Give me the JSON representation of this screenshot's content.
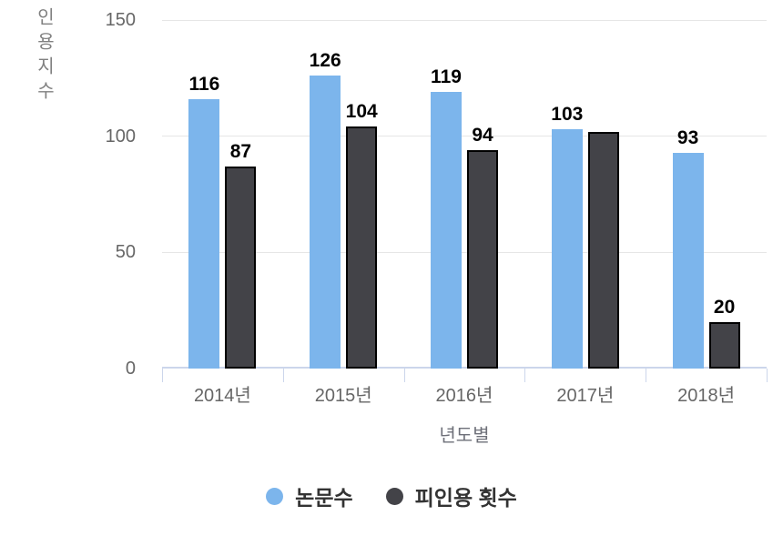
{
  "chart_data": {
    "type": "bar",
    "title": "",
    "xlabel": "년도별",
    "ylabel": "인용지수",
    "categories": [
      "2014년",
      "2015년",
      "2016년",
      "2017년",
      "2018년"
    ],
    "series": [
      {
        "name": "논문수",
        "color": "#7cb5ec",
        "border_color": null,
        "values": [
          116,
          126,
          119,
          103,
          93
        ],
        "value_labels": [
          "116",
          "126",
          "119",
          "103",
          "93"
        ]
      },
      {
        "name": "피인용 횟수",
        "color": "#434348",
        "border_color": "#000000",
        "values": [
          87,
          104,
          94,
          102,
          20
        ],
        "value_labels": [
          "87",
          "104",
          "94",
          "",
          "20"
        ]
      }
    ],
    "ylim": [
      0,
      150
    ],
    "yticks": [
      150,
      100,
      50,
      0
    ],
    "grid": true,
    "legend_position": "bottom"
  },
  "yaxis": {
    "title": "인용지수",
    "tick_labels": [
      "150",
      "100",
      "50",
      "0"
    ]
  },
  "xaxis": {
    "title": "년도별"
  },
  "legend": {
    "items": [
      {
        "label": "논문수",
        "color": "#7cb5ec"
      },
      {
        "label": "피인용 횟수",
        "color": "#434348"
      }
    ]
  },
  "colors": {
    "series_blue": "#7cb5ec",
    "series_dark": "#434348",
    "bar_border": "#000000",
    "gridline": "#e6e6e6",
    "axis_line": "#ccd6eb",
    "axis_text": "#666666",
    "data_label": "#000000",
    "legend_text": "#333333",
    "background": "#ffffff"
  }
}
